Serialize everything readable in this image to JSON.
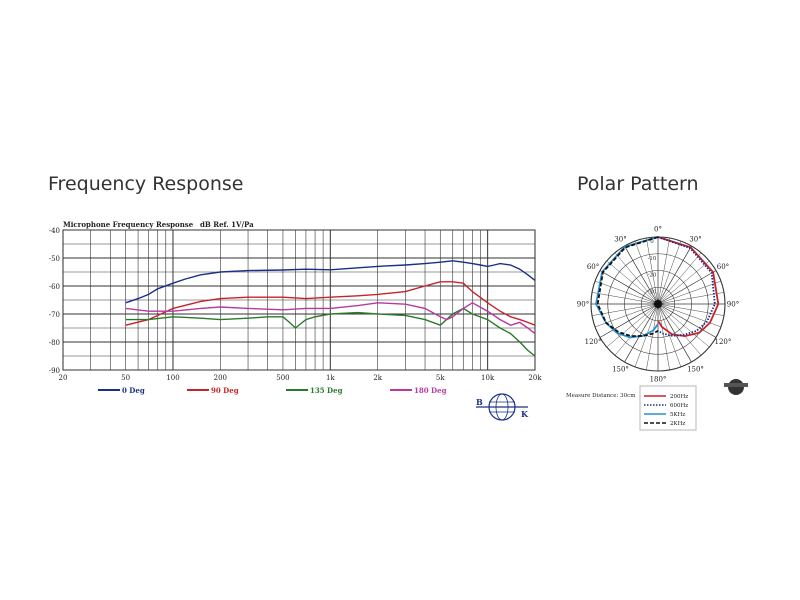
{
  "headings": {
    "frequency": "Frequency Response",
    "polar": "Polar Pattern"
  },
  "chart_data": [
    {
      "type": "line",
      "title": "Microphone Frequency Response",
      "ylabel": "dB Ref. 1V/Pa",
      "xscale": "log",
      "xlim": [
        20,
        20000
      ],
      "ylim": [
        -90,
        -40
      ],
      "grid": true,
      "legend_position": "bottom",
      "xticks": [
        {
          "v": 20,
          "t": "20"
        },
        {
          "v": 50,
          "t": "50"
        },
        {
          "v": 100,
          "t": "100"
        },
        {
          "v": 200,
          "t": "200"
        },
        {
          "v": 500,
          "t": "500"
        },
        {
          "v": 1000,
          "t": "1k"
        },
        {
          "v": 2000,
          "t": "2k"
        },
        {
          "v": 5000,
          "t": "5k"
        },
        {
          "v": 10000,
          "t": "10k"
        },
        {
          "v": 20000,
          "t": "20k"
        }
      ],
      "yticks": [
        {
          "v": -40,
          "t": "-40"
        },
        {
          "v": -50,
          "t": "-50"
        },
        {
          "v": -60,
          "t": "-60"
        },
        {
          "v": -70,
          "t": "-70"
        },
        {
          "v": -80,
          "t": "-80"
        },
        {
          "v": -90,
          "t": "-90"
        }
      ],
      "series": [
        {
          "name": "0 Deg",
          "color": "#1a2f8a",
          "x": [
            50,
            60,
            70,
            80,
            100,
            120,
            150,
            200,
            300,
            500,
            700,
            1000,
            1500,
            2000,
            3000,
            4000,
            5000,
            6000,
            7000,
            8000,
            9000,
            10000,
            11000,
            12000,
            14000,
            16000,
            18000,
            20000
          ],
          "y": [
            -66,
            -64.5,
            -63,
            -61,
            -59,
            -57.5,
            -56,
            -55,
            -54.5,
            -54.3,
            -54,
            -54.2,
            -53.5,
            -53,
            -52.5,
            -52,
            -51.5,
            -51,
            -51.5,
            -52,
            -52.5,
            -53,
            -52.5,
            -52,
            -52.5,
            -54,
            -56,
            -58
          ]
        },
        {
          "name": "90 Deg",
          "color": "#c8232a",
          "x": [
            50,
            70,
            100,
            150,
            200,
            300,
            500,
            700,
            1000,
            1500,
            2000,
            3000,
            4000,
            5000,
            6000,
            7000,
            8000,
            10000,
            12000,
            14000,
            16000,
            18000,
            20000
          ],
          "y": [
            -74,
            -72,
            -68,
            -65.5,
            -64.5,
            -64,
            -64,
            -64.5,
            -64,
            -63.5,
            -63,
            -62,
            -60,
            -58.5,
            -58.5,
            -59,
            -62,
            -66,
            -69,
            -71,
            -72,
            -73,
            -74
          ]
        },
        {
          "name": "135 Deg",
          "color": "#2a7a2a",
          "x": [
            50,
            70,
            100,
            150,
            200,
            300,
            400,
            500,
            550,
            600,
            700,
            800,
            1000,
            1500,
            2000,
            3000,
            4000,
            5000,
            6000,
            7000,
            8000,
            10000,
            12000,
            14000,
            16000,
            18000,
            20000
          ],
          "y": [
            -72,
            -72,
            -71,
            -71.5,
            -72,
            -71.5,
            -71,
            -71,
            -73,
            -75,
            -72,
            -71,
            -70,
            -69.5,
            -70,
            -70.5,
            -72,
            -74,
            -70,
            -68,
            -70,
            -72,
            -75,
            -77,
            -80,
            -83,
            -85
          ]
        },
        {
          "name": "180 Deg",
          "color": "#b8399f",
          "x": [
            50,
            70,
            100,
            150,
            200,
            300,
            500,
            700,
            1000,
            1500,
            2000,
            3000,
            4000,
            5000,
            5500,
            6000,
            7000,
            8000,
            10000,
            12000,
            14000,
            16000,
            18000,
            20000
          ],
          "y": [
            -68,
            -69,
            -69,
            -68,
            -67.5,
            -68,
            -68.5,
            -68,
            -68,
            -67,
            -66,
            -66.5,
            -68,
            -71,
            -72,
            -71,
            -68,
            -66,
            -69,
            -72,
            -74,
            -73,
            -75,
            -77
          ]
        }
      ]
    },
    {
      "type": "polar",
      "title": "Polar Pattern",
      "angle_labels": [
        {
          "a": 0,
          "t": "0°"
        },
        {
          "a": 30,
          "t": "30°"
        },
        {
          "a": 60,
          "t": "60°"
        },
        {
          "a": 90,
          "t": "90°"
        },
        {
          "a": 120,
          "t": "120°"
        },
        {
          "a": 150,
          "t": "150°"
        },
        {
          "a": 180,
          "t": "180°"
        },
        {
          "a": 210,
          "t": "150°"
        },
        {
          "a": 240,
          "t": "120°"
        },
        {
          "a": 270,
          "t": "90°"
        },
        {
          "a": 300,
          "t": "60°"
        },
        {
          "a": 330,
          "t": "30°"
        }
      ],
      "ring_labels": [
        "0",
        "-10",
        "-20",
        "-30"
      ],
      "note": "Measure Distance: 30cm",
      "series": [
        {
          "name": "200Hz",
          "color": "#c8232a",
          "style": "solid",
          "half": "right",
          "angle": [
            0,
            30,
            60,
            90,
            110,
            125,
            140,
            155,
            170,
            180
          ],
          "level": [
            0,
            -1,
            -2,
            -4,
            -7,
            -10,
            -15,
            -20,
            -26,
            -30
          ]
        },
        {
          "name": "600Hz",
          "color": "#1a2f8a",
          "style": "dotted",
          "half": "right",
          "angle": [
            0,
            30,
            60,
            90,
            110,
            125,
            140,
            155,
            170,
            180
          ],
          "level": [
            0,
            -1.5,
            -3,
            -6,
            -9,
            -12,
            -16,
            -19,
            -22,
            -24
          ]
        },
        {
          "name": "5KHz",
          "color": "#2a8fd0",
          "style": "solid",
          "half": "left",
          "angle": [
            0,
            30,
            60,
            90,
            110,
            125,
            140,
            155,
            170,
            180
          ],
          "level": [
            0,
            -0.5,
            -1.5,
            -3,
            -7,
            -10,
            -14,
            -19,
            -24,
            -28
          ]
        },
        {
          "name": "2KHz",
          "color": "#111111",
          "style": "dashed",
          "half": "left",
          "angle": [
            0,
            30,
            60,
            90,
            110,
            125,
            140,
            155,
            170,
            180
          ],
          "level": [
            0,
            -1,
            -2,
            -4,
            -7,
            -11,
            -15,
            -19,
            -22,
            -24
          ]
        }
      ]
    }
  ]
}
